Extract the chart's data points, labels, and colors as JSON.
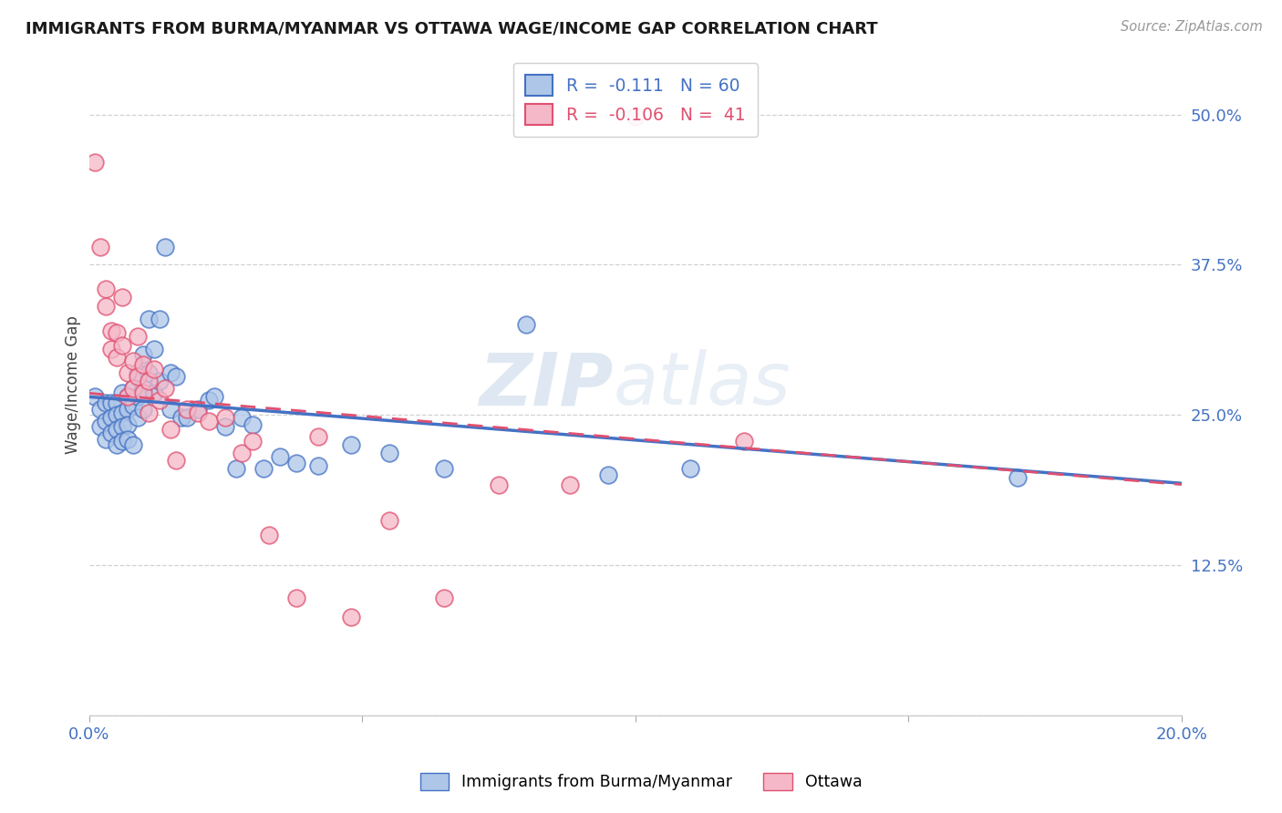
{
  "title": "IMMIGRANTS FROM BURMA/MYANMAR VS OTTAWA WAGE/INCOME GAP CORRELATION CHART",
  "source": "Source: ZipAtlas.com",
  "ylabel": "Wage/Income Gap",
  "xlim": [
    0.0,
    0.2
  ],
  "ylim": [
    0.0,
    0.55
  ],
  "yticks": [
    0.0,
    0.125,
    0.25,
    0.375,
    0.5
  ],
  "ytick_labels": [
    "",
    "12.5%",
    "25.0%",
    "37.5%",
    "50.0%"
  ],
  "xticks": [
    0.0,
    0.05,
    0.1,
    0.15,
    0.2
  ],
  "xtick_labels": [
    "0.0%",
    "",
    "",
    "",
    "20.0%"
  ],
  "blue_R": "-0.111",
  "blue_N": "60",
  "pink_R": "-0.106",
  "pink_N": "41",
  "blue_color": "#aec6e8",
  "pink_color": "#f5b8c8",
  "blue_line_color": "#4472c4",
  "pink_line_color": "#e05070",
  "legend_label_blue": "Immigrants from Burma/Myanmar",
  "legend_label_pink": "Ottawa",
  "blue_regression": [
    0.265,
    -0.36
  ],
  "pink_regression": [
    0.268,
    -0.38
  ],
  "blue_scatter_x": [
    0.001,
    0.002,
    0.002,
    0.003,
    0.003,
    0.003,
    0.004,
    0.004,
    0.004,
    0.005,
    0.005,
    0.005,
    0.005,
    0.006,
    0.006,
    0.006,
    0.006,
    0.007,
    0.007,
    0.007,
    0.007,
    0.008,
    0.008,
    0.008,
    0.009,
    0.009,
    0.009,
    0.01,
    0.01,
    0.01,
    0.011,
    0.011,
    0.012,
    0.012,
    0.013,
    0.013,
    0.014,
    0.015,
    0.015,
    0.016,
    0.017,
    0.018,
    0.02,
    0.022,
    0.023,
    0.025,
    0.027,
    0.028,
    0.03,
    0.032,
    0.035,
    0.038,
    0.042,
    0.048,
    0.055,
    0.065,
    0.08,
    0.095,
    0.11,
    0.17
  ],
  "blue_scatter_y": [
    0.265,
    0.255,
    0.24,
    0.26,
    0.245,
    0.23,
    0.26,
    0.248,
    0.235,
    0.26,
    0.25,
    0.238,
    0.225,
    0.268,
    0.252,
    0.24,
    0.228,
    0.265,
    0.255,
    0.242,
    0.23,
    0.272,
    0.258,
    0.225,
    0.285,
    0.265,
    0.248,
    0.3,
    0.272,
    0.255,
    0.33,
    0.285,
    0.305,
    0.268,
    0.33,
    0.278,
    0.39,
    0.285,
    0.255,
    0.282,
    0.248,
    0.248,
    0.255,
    0.262,
    0.265,
    0.24,
    0.205,
    0.248,
    0.242,
    0.205,
    0.215,
    0.21,
    0.208,
    0.225,
    0.218,
    0.205,
    0.325,
    0.2,
    0.205,
    0.198
  ],
  "pink_scatter_x": [
    0.001,
    0.002,
    0.003,
    0.003,
    0.004,
    0.004,
    0.005,
    0.005,
    0.006,
    0.006,
    0.007,
    0.007,
    0.008,
    0.008,
    0.009,
    0.009,
    0.01,
    0.01,
    0.011,
    0.011,
    0.012,
    0.013,
    0.014,
    0.015,
    0.016,
    0.018,
    0.02,
    0.022,
    0.025,
    0.028,
    0.03,
    0.033,
    0.038,
    0.042,
    0.048,
    0.055,
    0.065,
    0.075,
    0.088,
    0.1,
    0.12
  ],
  "pink_scatter_y": [
    0.46,
    0.39,
    0.355,
    0.34,
    0.32,
    0.305,
    0.318,
    0.298,
    0.348,
    0.308,
    0.285,
    0.265,
    0.295,
    0.272,
    0.315,
    0.282,
    0.292,
    0.268,
    0.278,
    0.252,
    0.288,
    0.262,
    0.272,
    0.238,
    0.212,
    0.255,
    0.252,
    0.245,
    0.248,
    0.218,
    0.228,
    0.15,
    0.098,
    0.232,
    0.082,
    0.162,
    0.098,
    0.192,
    0.192,
    0.498,
    0.228
  ],
  "watermark_zip": "ZIP",
  "watermark_atlas": "atlas",
  "background_color": "#ffffff",
  "grid_color": "#cccccc"
}
